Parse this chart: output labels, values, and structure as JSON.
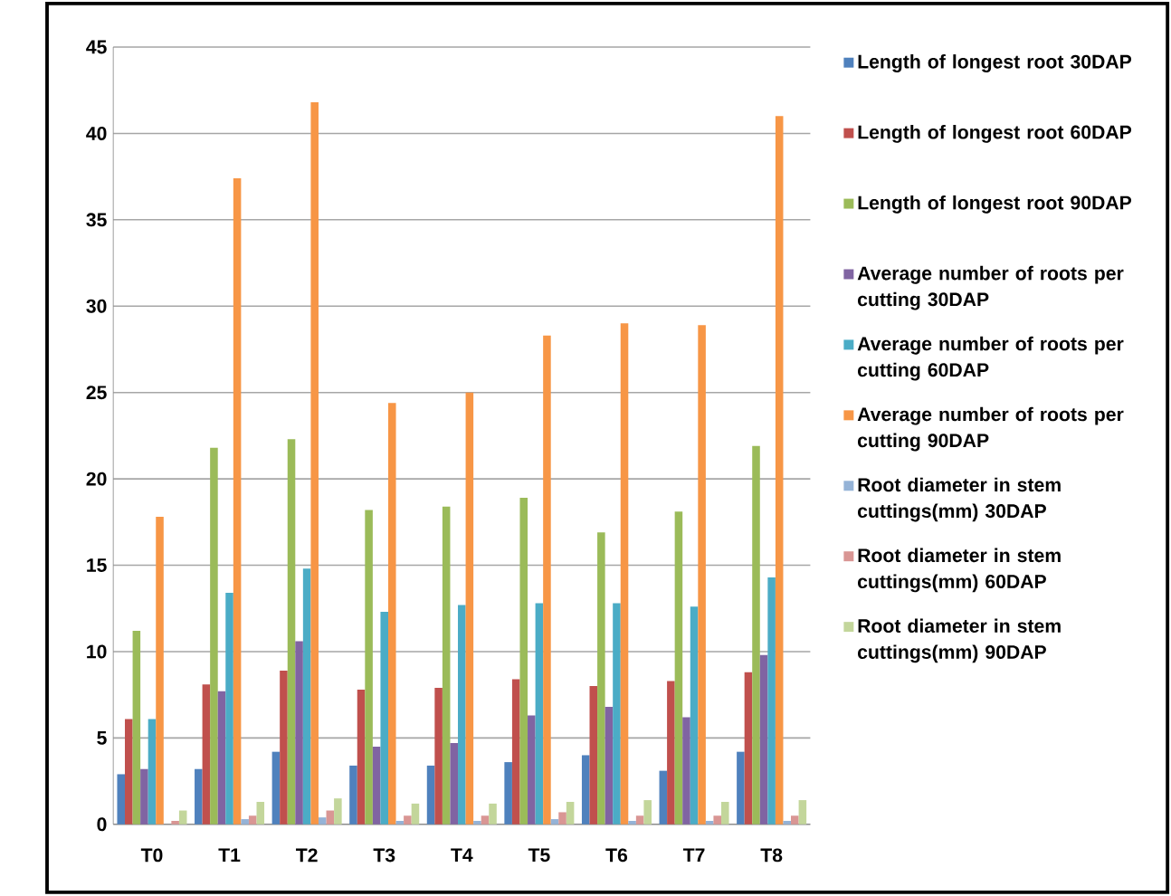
{
  "chart_data": {
    "type": "bar",
    "categories": [
      "T0",
      "T1",
      "T2",
      "T3",
      "T4",
      "T5",
      "T6",
      "T7",
      "T8"
    ],
    "series": [
      {
        "name": "Length of longest root 30DAP",
        "color": "#4f81bd",
        "values": [
          2.9,
          3.2,
          4.2,
          3.4,
          3.4,
          3.6,
          4.0,
          3.1,
          4.2
        ]
      },
      {
        "name": "Length of longest root 60DAP",
        "color": "#c0504d",
        "values": [
          6.1,
          8.1,
          8.9,
          7.8,
          7.9,
          8.4,
          8.0,
          8.3,
          8.8
        ]
      },
      {
        "name": "Length of longest root 90DAP",
        "color": "#9bbb59",
        "values": [
          11.2,
          21.8,
          22.3,
          18.2,
          18.4,
          18.9,
          16.9,
          18.1,
          21.9
        ]
      },
      {
        "name": "Average number of roots per cutting 30DAP",
        "color": "#8064a2",
        "values": [
          3.2,
          7.7,
          10.6,
          4.5,
          4.7,
          6.3,
          6.8,
          6.2,
          9.8
        ]
      },
      {
        "name": "Average number of roots per cutting 60DAP",
        "color": "#4bacc6",
        "values": [
          6.1,
          13.4,
          14.8,
          12.3,
          12.7,
          12.8,
          12.8,
          12.6,
          14.3
        ]
      },
      {
        "name": "Average number of roots per cutting 90DAP",
        "color": "#f79646",
        "values": [
          17.8,
          37.4,
          41.8,
          24.4,
          25.0,
          28.3,
          29.0,
          28.9,
          41.0
        ]
      },
      {
        "name": "Root diameter in stem cuttings(mm) 30DAP",
        "color": "#95b3d7",
        "values": [
          null,
          0.3,
          0.4,
          0.2,
          0.2,
          0.3,
          0.2,
          0.2,
          0.2
        ]
      },
      {
        "name": "Root diameter in stem cuttings(mm) 60DAP",
        "color": "#d99694",
        "values": [
          0.2,
          0.5,
          0.8,
          0.5,
          0.5,
          0.7,
          0.5,
          0.5,
          0.5
        ]
      },
      {
        "name": "Root diameter in stem cuttings(mm) 90DAP",
        "color": "#c3d69b",
        "values": [
          0.8,
          1.3,
          1.5,
          1.2,
          1.2,
          1.3,
          1.4,
          1.3,
          1.4
        ]
      }
    ],
    "ylim": [
      0,
      45
    ],
    "yticks": [
      0,
      5,
      10,
      15,
      20,
      25,
      30,
      35,
      40,
      45
    ],
    "grid": "y",
    "legend": "right"
  }
}
